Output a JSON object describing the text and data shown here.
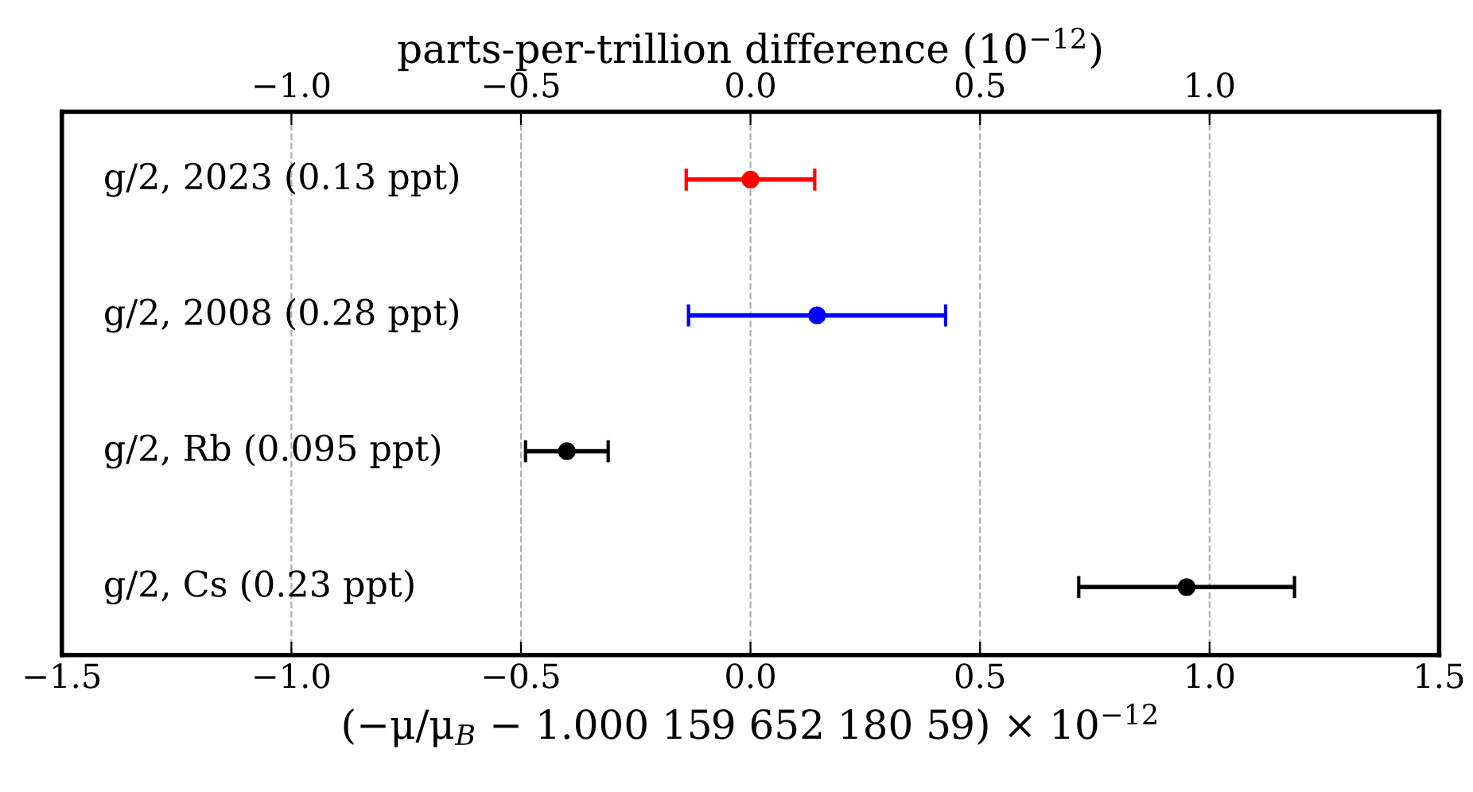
{
  "chart_data": {
    "type": "scatter",
    "orientation": "horizontal",
    "categories": [
      "g/2, 2023 (0.13 ppt)",
      "g/2, 2008 (0.28 ppt)",
      "g/2, Rb (0.095 ppt)",
      "g/2, Cs (0.23 ppt)"
    ],
    "values": [
      0.0,
      0.145,
      -0.4,
      0.95
    ],
    "errors": [
      0.14,
      0.28,
      0.09,
      0.235
    ],
    "colors": [
      "#ff0000",
      "#0000ff",
      "#000000",
      "#000000"
    ],
    "marker": "circle",
    "xlabel": "(−μ/μ$_{B}$ − 1.000 159 652 180 59) × 10$^{−12}$",
    "x2label": "parts-per-trillion difference (10$^{−12}$)",
    "xlim": [
      -1.5,
      1.5
    ],
    "xticks": [
      {
        "value": -1.5,
        "label": "−1.5"
      },
      {
        "value": -1.0,
        "label": "−1.0"
      },
      {
        "value": -0.5,
        "label": "−0.5"
      },
      {
        "value": 0.0,
        "label": "0.0"
      },
      {
        "value": 0.5,
        "label": "0.5"
      },
      {
        "value": 1.0,
        "label": "1.0"
      },
      {
        "value": 1.5,
        "label": "1.5"
      }
    ],
    "x2lim": [
      -1.5,
      1.5
    ],
    "x2ticks": [
      {
        "value": -1.0,
        "label": "−1.0"
      },
      {
        "value": -0.5,
        "label": "−0.5"
      },
      {
        "value": 0.0,
        "label": "0.0"
      },
      {
        "value": 0.5,
        "label": "0.5"
      },
      {
        "value": 1.0,
        "label": "1.0"
      }
    ],
    "grid": "x"
  }
}
